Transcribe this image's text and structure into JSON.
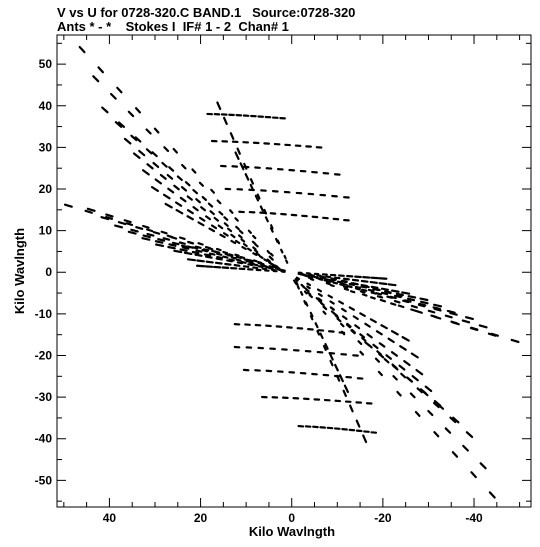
{
  "header": {
    "line1": "V vs U for 0728-320.C BAND.1   Source:0728-320",
    "line2": "Ants * - *    Stokes I  IF# 1 - 2  Chan# 1"
  },
  "chart_data": {
    "type": "scatter",
    "title": "V vs U for 0728-320.C BAND.1   Source:0728-320",
    "subtitle": "Ants * - *    Stokes I  IF# 1 - 2  Chan# 1",
    "xlabel": "Kilo Wavlngth",
    "ylabel": "Kilo Wavlngth",
    "xlim": [
      51.5,
      -52.5
    ],
    "ylim": [
      -56.4,
      57.0
    ],
    "x_reversed": true,
    "xticks": [
      40,
      20,
      0,
      -20,
      -40
    ],
    "xtick_labels": [
      "40",
      "20",
      "0",
      "-20",
      "-40"
    ],
    "yticks": [
      50,
      40,
      30,
      20,
      10,
      0,
      -10,
      -20,
      -30,
      -40,
      -50
    ],
    "ytick_labels": [
      "50",
      "40",
      "30",
      "20",
      "10",
      "0",
      "-10",
      "-20",
      "-30",
      "-40",
      "-50"
    ],
    "grid": false,
    "legend": "none",
    "marker_color": "#000000",
    "tracks": [
      {
        "name": "s1",
        "u1": 46.0,
        "v1": 53.5,
        "u2": -44.0,
        "v2": -53.5
      },
      {
        "name": "s2",
        "u1": 43.0,
        "v1": 46.5,
        "u2": -42.0,
        "v2": -46.5
      },
      {
        "name": "s3",
        "u1": 41.0,
        "v1": 39.0,
        "u2": -39.0,
        "v2": -39.0
      },
      {
        "name": "s4",
        "u1": 38.0,
        "v1": 35.5,
        "u2": -36.0,
        "v2": -35.5
      },
      {
        "name": "s5",
        "u1": 36.0,
        "v1": 31.5,
        "u2": -32.0,
        "v2": -31.5
      },
      {
        "name": "s6",
        "u1": 34.0,
        "v1": 28.0,
        "u2": -30.0,
        "v2": -28.0
      },
      {
        "name": "s7",
        "u1": 32.0,
        "v1": 24.0,
        "u2": -28.0,
        "v2": -24.0
      },
      {
        "name": "s8",
        "u1": 30.0,
        "v1": 20.0,
        "u2": -27.0,
        "v2": -20.0
      },
      {
        "name": "s9",
        "u1": 27.0,
        "v1": 16.0,
        "u2": -25.0,
        "v2": -16.0
      },
      {
        "name": "s10",
        "u1": 49.0,
        "v1": 16.0,
        "u2": -49.0,
        "v2": -16.5
      },
      {
        "name": "s11",
        "u1": 44.0,
        "v1": 15.0,
        "u2": -44.0,
        "v2": -15.0
      },
      {
        "name": "s12",
        "u1": 41.0,
        "v1": 13.0,
        "u2": -42.0,
        "v2": -13.0
      },
      {
        "name": "s13",
        "u1": 38.0,
        "v1": 11.0,
        "u2": -39.0,
        "v2": -11.0
      },
      {
        "name": "s14",
        "u1": 35.0,
        "v1": 9.5,
        "u2": -35.0,
        "v2": -9.5
      },
      {
        "name": "s15",
        "u1": 32.0,
        "v1": 8.0,
        "u2": -32.0,
        "v2": -8.0
      },
      {
        "name": "s16",
        "u1": 29.0,
        "v1": 6.5,
        "u2": -29.0,
        "v2": -6.5
      },
      {
        "name": "s17",
        "u1": 25.0,
        "v1": 5.0,
        "u2": -25.0,
        "v2": -5.0
      },
      {
        "name": "s18",
        "u1": 22.0,
        "v1": 3.0,
        "u2": -22.0,
        "v2": -3.0
      },
      {
        "name": "s19",
        "u1": 16.0,
        "v1": 40.0,
        "u2": -16.0,
        "v2": -40.0
      },
      {
        "name": "s20",
        "u1": 12.0,
        "v1": 28.0,
        "u2": -12.0,
        "v2": -28.0
      },
      {
        "name": "s21",
        "u1": 20.0,
        "v1": 1.5,
        "u2": -20.0,
        "v2": -1.5
      }
    ],
    "arcs": [
      {
        "name": "arc-1",
        "u_start": 18.0,
        "u_end": 2.0,
        "v": 38.0,
        "v_end": 37.0
      },
      {
        "name": "arc-2",
        "u_start": 17.0,
        "u_end": -6.0,
        "v": 31.5,
        "v_end": 30.0
      },
      {
        "name": "arc-3",
        "u_start": 15.0,
        "u_end": -10.0,
        "v": 25.5,
        "v_end": 23.5
      },
      {
        "name": "arc-4",
        "u_start": 14.0,
        "u_end": -12.0,
        "v": 20.0,
        "v_end": 18.0
      },
      {
        "name": "arc-5",
        "u_start": 11.0,
        "u_end": -12.0,
        "v": 14.5,
        "v_end": 12.5
      },
      {
        "name": "arc-6",
        "u_start": 26.0,
        "u_end": 2.0,
        "v": 6.5,
        "v_end": 0.5
      },
      {
        "name": "arc-7",
        "u_start": -2.0,
        "u_end": -26.0,
        "v": -0.5,
        "v_end": -6.5
      },
      {
        "name": "arc-8",
        "u_start": 12.0,
        "u_end": -11.0,
        "v": -12.5,
        "v_end": -14.5
      },
      {
        "name": "arc-9",
        "u_start": 12.0,
        "u_end": -14.0,
        "v": -18.0,
        "v_end": -20.0
      },
      {
        "name": "arc-10",
        "u_start": 10.0,
        "u_end": -15.0,
        "v": -23.5,
        "v_end": -25.5
      },
      {
        "name": "arc-11",
        "u_start": 6.0,
        "u_end": -17.0,
        "v": -30.0,
        "v_end": -31.5
      },
      {
        "name": "arc-12",
        "u_start": -2.0,
        "u_end": -18.0,
        "v": -37.0,
        "v_end": -38.5
      }
    ]
  }
}
